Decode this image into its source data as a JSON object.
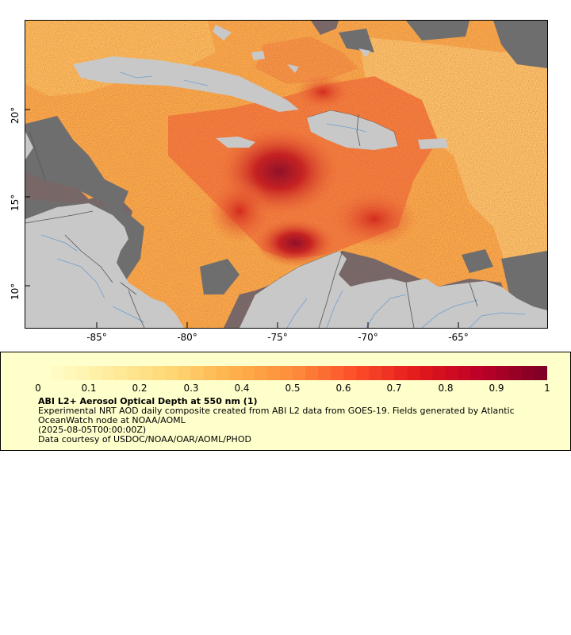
{
  "map": {
    "y_axis_labels": [
      "20°",
      "15°",
      "10°"
    ],
    "x_axis_labels": [
      "-85°",
      "-80°",
      "-75°",
      "-70°",
      "-65°"
    ],
    "colors": {
      "no_data": "#6e6e6e",
      "land": "#c8c8c8",
      "rivers": "#6f9fd0",
      "borders": "#555555"
    }
  },
  "legend": {
    "ticks": [
      "0",
      "0.1",
      "0.2",
      "0.3",
      "0.4",
      "0.5",
      "0.6",
      "0.7",
      "0.8",
      "0.9",
      "1"
    ],
    "title": "ABI L2+ Aerosol Optical Depth at 550 nm (1)",
    "line1": "Experimental NRT AOD daily composite created from ABI L2 data from GOES-19. Fields generated by Atlantic OceanWatch node at NOAA/AOML",
    "line2": "(2025-08-05T00:00:00Z)",
    "line3": "Data courtesy of USDOC/NOAA/OAR/AOML/PHOD",
    "colormap": [
      "#ffffcc",
      "#ffeda0",
      "#fed976",
      "#feb24c",
      "#fd8d3c",
      "#fc4e2a",
      "#e31a1c",
      "#bd0026",
      "#800026"
    ]
  }
}
